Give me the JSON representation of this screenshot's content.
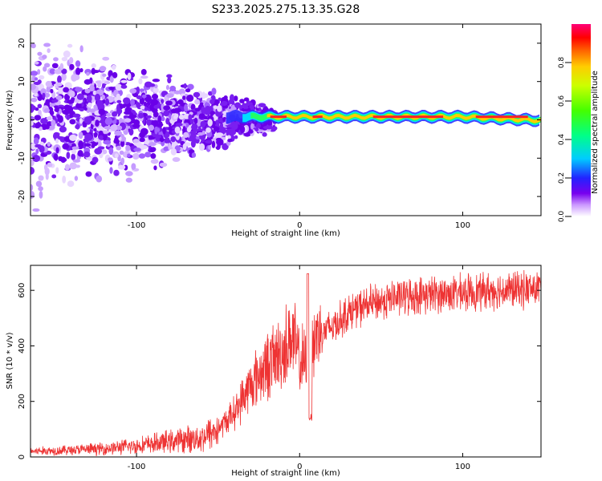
{
  "title": "S233.2025.275.13.35.G28",
  "chart_data": [
    {
      "type": "heatmap",
      "xlabel": "Height of straight line (km)",
      "ylabel": "Frequency (Hz)",
      "xlim": [
        -165,
        148
      ],
      "ylim": [
        -25,
        25
      ],
      "x_ticks": [
        -100,
        0,
        100
      ],
      "y_ticks": [
        -20,
        -10,
        0,
        10,
        20
      ],
      "colorbar": {
        "label": "Normalized spectral amplitude",
        "range": [
          0,
          1
        ],
        "ticks": [
          "0.0",
          "0.2",
          "0.4",
          "0.6",
          "0.8"
        ]
      },
      "description_points": [
        {
          "height_km": -150,
          "spread_hz": 24,
          "amplitude": 0.25
        },
        {
          "height_km": -100,
          "spread_hz": 18,
          "amplitude": 0.3
        },
        {
          "height_km": -50,
          "spread_hz": 10,
          "amplitude": 0.35
        },
        {
          "height_km": -25,
          "spread_hz": 2,
          "amplitude": 0.6
        },
        {
          "height_km": 0,
          "spread_hz": 1.5,
          "amplitude": 0.85
        },
        {
          "height_km": 50,
          "spread_hz": 1,
          "amplitude": 0.95
        },
        {
          "height_km": 100,
          "spread_hz": 1,
          "amplitude": 0.9
        },
        {
          "height_km": 148,
          "spread_hz": 1,
          "amplitude": 0.5
        }
      ]
    },
    {
      "type": "line",
      "xlabel": "Height of straight line (km)",
      "ylabel": "SNR (10 * v/v)",
      "xlim": [
        -165,
        148
      ],
      "ylim": [
        0,
        690
      ],
      "x_ticks": [
        -100,
        0,
        100
      ],
      "y_ticks": [
        0,
        200,
        400,
        600
      ],
      "series": [
        {
          "name": "SNR",
          "color": "#ee3333",
          "x": [
            -165,
            -140,
            -120,
            -100,
            -80,
            -60,
            -50,
            -40,
            -30,
            -20,
            -10,
            -5,
            0,
            5,
            10,
            20,
            30,
            40,
            50,
            60,
            80,
            100,
            120,
            148
          ],
          "y": [
            20,
            25,
            30,
            40,
            55,
            70,
            100,
            160,
            260,
            330,
            380,
            440,
            350,
            330,
            440,
            470,
            520,
            545,
            560,
            575,
            585,
            590,
            600,
            605
          ]
        }
      ]
    }
  ]
}
